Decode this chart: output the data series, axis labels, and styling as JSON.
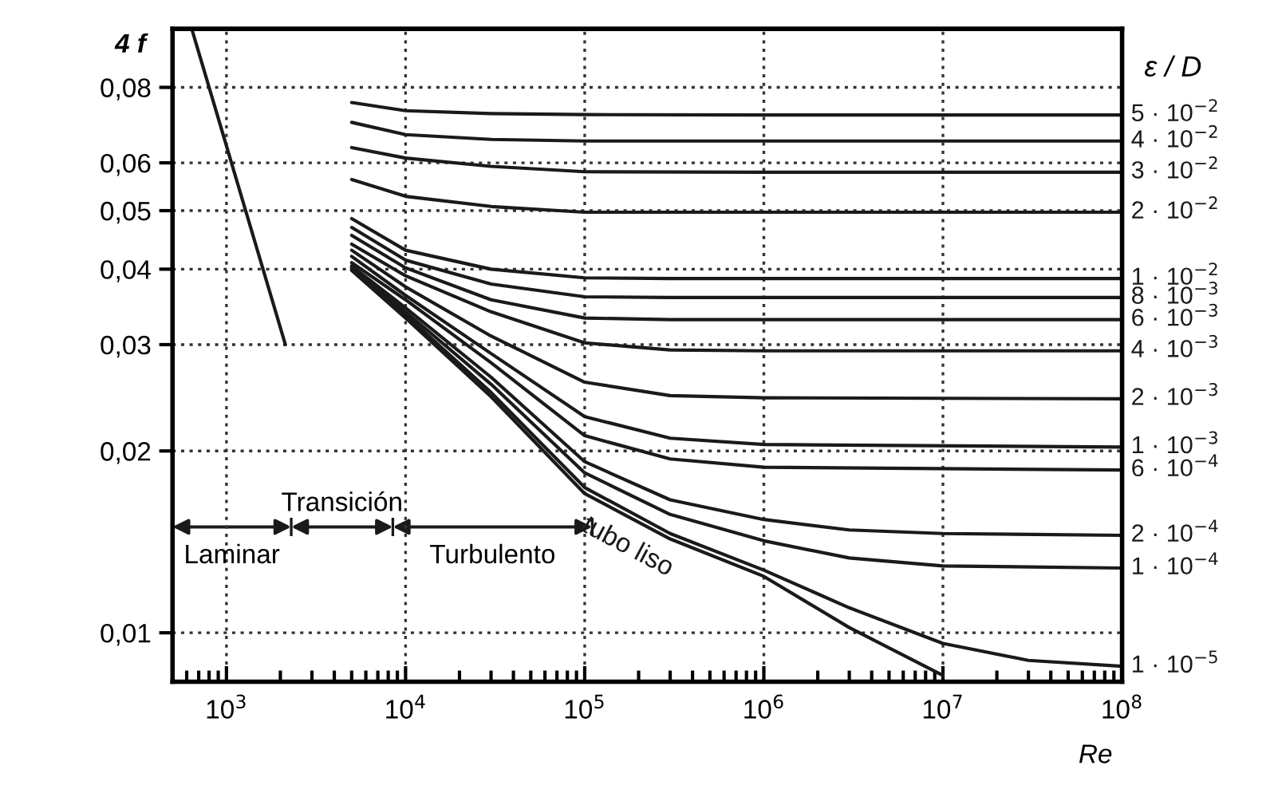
{
  "chart_data": {
    "type": "line",
    "xlabel": "Re",
    "ylabel": "4 f",
    "legend_title": "ε / D",
    "log": "xy",
    "grid": true,
    "legend": false,
    "marker": "none",
    "line_style": "solid",
    "xlim": [
      500,
      100000000
    ],
    "ylim": [
      0.0083,
      0.1
    ],
    "xticks": [
      {
        "value": 1000,
        "label": "10$^{3}$"
      },
      {
        "value": 10000,
        "label": "10$^{4}$"
      },
      {
        "value": 100000,
        "label": "10$^{5}$"
      },
      {
        "value": 1000000,
        "label": "10$^{6}$"
      },
      {
        "value": 10000000,
        "label": "10$^{7}$"
      },
      {
        "value": 100000000,
        "label": "10$^{8}$"
      }
    ],
    "yticks": [
      {
        "value": 0.01,
        "label": "0,01"
      },
      {
        "value": 0.02,
        "label": "0,02"
      },
      {
        "value": 0.03,
        "label": "0,03"
      },
      {
        "value": 0.04,
        "label": "0,04"
      },
      {
        "value": 0.05,
        "label": "0,05"
      },
      {
        "value": 0.06,
        "label": "0,06"
      },
      {
        "value": 0.08,
        "label": "0,08"
      }
    ],
    "annotations": [
      "Laminar",
      "Transición",
      "Turbulento"
    ],
    "series": [
      {
        "color": "#1a1a1a",
        "x": [
          640,
          2133
        ],
        "values": [
          0.1,
          0.03
        ]
      },
      {
        "name": "5 · 10$^{−2}$",
        "color": "#1a1a1a",
        "x": [
          5000,
          10000,
          30000,
          100000,
          1000000,
          100000000
        ],
        "values": [
          0.0755,
          0.0732,
          0.0724,
          0.0721,
          0.072,
          0.072
        ]
      },
      {
        "name": "4 · 10$^{−2}$",
        "color": "#1a1a1a",
        "x": [
          5000,
          10000,
          30000,
          100000,
          1000000,
          100000000
        ],
        "values": [
          0.07,
          0.0668,
          0.0656,
          0.0652,
          0.0652,
          0.0652
        ]
      },
      {
        "name": "3 · 10$^{−2}$",
        "color": "#1a1a1a",
        "x": [
          5000,
          10000,
          30000,
          100000,
          1000000,
          100000000
        ],
        "values": [
          0.0636,
          0.0611,
          0.0592,
          0.058,
          0.0579,
          0.0579
        ]
      },
      {
        "name": "2 · 10$^{−2}$",
        "color": "#1a1a1a",
        "x": [
          5000,
          10000,
          30000,
          100000,
          1000000,
          100000000
        ],
        "values": [
          0.0563,
          0.0528,
          0.0508,
          0.0497,
          0.0497,
          0.0497
        ]
      },
      {
        "name": "1 · 10$^{−2}$",
        "color": "#1a1a1a",
        "x": [
          5000,
          10000,
          30000,
          100000,
          300000,
          1000000,
          100000000
        ],
        "values": [
          0.0485,
          0.043,
          0.04,
          0.0387,
          0.0386,
          0.0386,
          0.0386
        ]
      },
      {
        "name": "8 · 10$^{−3}$",
        "color": "#1a1a1a",
        "x": [
          5000,
          10000,
          30000,
          100000,
          300000,
          1000000,
          100000000
        ],
        "values": [
          0.0469,
          0.0414,
          0.0378,
          0.036,
          0.0359,
          0.0359,
          0.0359
        ]
      },
      {
        "name": "6 · 10$^{−3}$",
        "color": "#1a1a1a",
        "x": [
          5000,
          10000,
          30000,
          100000,
          300000,
          1000000,
          100000000
        ],
        "values": [
          0.0455,
          0.0402,
          0.0356,
          0.0332,
          0.033,
          0.033,
          0.033
        ]
      },
      {
        "name": "4 · 10$^{−3}$",
        "color": "#1a1a1a",
        "x": [
          5000,
          10000,
          30000,
          100000,
          300000,
          1000000,
          100000000
        ],
        "values": [
          0.044,
          0.039,
          0.034,
          0.0302,
          0.0294,
          0.0293,
          0.0293
        ]
      },
      {
        "name": "2 · 10$^{−3}$",
        "color": "#1a1a1a",
        "x": [
          5000,
          10000,
          30000,
          100000,
          300000,
          1000000,
          100000000
        ],
        "values": [
          0.043,
          0.0374,
          0.031,
          0.026,
          0.0247,
          0.0245,
          0.0244
        ]
      },
      {
        "name": "1 · 10$^{−3}$",
        "color": "#1a1a1a",
        "x": [
          5000,
          10000,
          30000,
          100000,
          300000,
          1000000,
          100000000
        ],
        "values": [
          0.042,
          0.0362,
          0.029,
          0.0228,
          0.021,
          0.0205,
          0.0203
        ]
      },
      {
        "name": "6 · 10$^{−4}$",
        "color": "#1a1a1a",
        "x": [
          5000,
          10000,
          30000,
          100000,
          300000,
          1000000,
          100000000
        ],
        "values": [
          0.041,
          0.0356,
          0.028,
          0.0212,
          0.0194,
          0.0188,
          0.0186
        ]
      },
      {
        "name": "2 · 10$^{−4}$",
        "color": "#1a1a1a",
        "x": [
          5000,
          10000,
          30000,
          100000,
          300000,
          1000000,
          3000000,
          10000000,
          100000000
        ],
        "values": [
          0.0405,
          0.0345,
          0.0265,
          0.0192,
          0.0166,
          0.0154,
          0.0148,
          0.0146,
          0.0145
        ]
      },
      {
        "name": "1 · 10$^{−4}$",
        "color": "#1a1a1a",
        "x": [
          5000,
          10000,
          30000,
          100000,
          300000,
          1000000,
          3000000,
          10000000,
          100000000
        ],
        "values": [
          0.0402,
          0.034,
          0.0258,
          0.0184,
          0.0157,
          0.0142,
          0.0133,
          0.0129,
          0.0128
        ]
      },
      {
        "name": "1 · 10$^{−5}$",
        "color": "#1a1a1a",
        "x": [
          5000,
          10000,
          30000,
          100000,
          300000,
          1000000,
          3000000,
          10000000,
          30000000,
          100000000
        ],
        "values": [
          0.04,
          0.0336,
          0.025,
          0.0174,
          0.0146,
          0.0127,
          0.011,
          0.0096,
          0.009,
          0.0088
        ]
      },
      {
        "name": "tubo liso",
        "color": "#1a1a1a",
        "x": [
          5000,
          10000,
          30000,
          100000,
          300000,
          1000000,
          3000000,
          10000000
        ],
        "values": [
          0.0398,
          0.0332,
          0.0246,
          0.017,
          0.0143,
          0.0124,
          0.0102,
          0.0085
        ]
      }
    ]
  }
}
